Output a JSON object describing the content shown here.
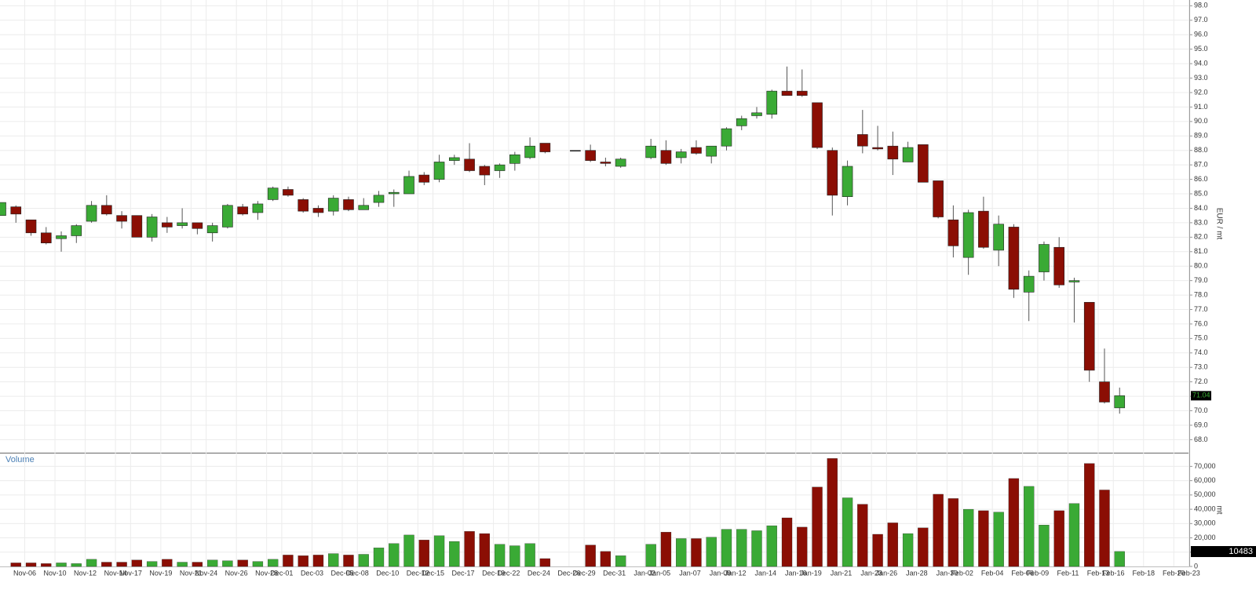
{
  "chart_data": {
    "type": "candlestick",
    "volume_title": "Volume",
    "y_label": "EUR / mt",
    "y2_label": "mt",
    "up_color": "#3aaa35",
    "down_color": "#8b0e04",
    "grid": true,
    "categories": [
      null,
      null,
      "Nov-06",
      null,
      "Nov-10",
      null,
      "Nov-12",
      null,
      "Nov-14",
      "Nov-17",
      null,
      "Nov-19",
      null,
      "Nov-21",
      "Nov-24",
      null,
      "Nov-26",
      null,
      "Nov-28",
      "Dec-01",
      null,
      "Dec-03",
      null,
      "Dec-05",
      "Dec-08",
      null,
      "Dec-10",
      null,
      "Dec-12",
      "Dec-15",
      null,
      "Dec-17",
      null,
      "Dec-19",
      "Dec-22",
      null,
      "Dec-24",
      null,
      "Dec-26",
      "Dec-29",
      null,
      "Dec-31",
      null,
      "Jan-02",
      "Jan-05",
      null,
      "Jan-07",
      null,
      "Jan-09",
      "Jan-12",
      null,
      "Jan-14",
      null,
      "Jan-16",
      "Jan-19",
      null,
      "Jan-21",
      null,
      "Jan-23",
      "Jan-26",
      null,
      "Jan-28",
      null,
      "Jan-30",
      "Feb-02",
      null,
      "Feb-04",
      null,
      "Feb-06",
      "Feb-09",
      null,
      "Feb-11",
      null,
      "Feb-13",
      "Feb-16",
      null,
      "Feb-18",
      null,
      "Feb-20",
      "Feb-23"
    ],
    "open": [
      83.5,
      84.1,
      83.2,
      82.3,
      81.9,
      82.1,
      83.1,
      84.2,
      83.5,
      83.5,
      82.0,
      83.0,
      82.8,
      83.0,
      82.3,
      82.7,
      84.1,
      83.7,
      84.6,
      85.3,
      84.6,
      84.0,
      83.8,
      84.6,
      83.9,
      84.4,
      85.0,
      85.0,
      86.3,
      86.0,
      87.3,
      87.4,
      86.9,
      86.6,
      87.1,
      87.5,
      88.5,
      null,
      88.0,
      88.0,
      87.2,
      86.9,
      null,
      87.5,
      88.0,
      87.5,
      88.2,
      87.6,
      88.3,
      89.7,
      90.4,
      90.5,
      92.1,
      92.1,
      91.3,
      88.0,
      84.8,
      89.1,
      88.2,
      88.3,
      87.2,
      88.4,
      85.9,
      83.2,
      80.6,
      83.8,
      81.1,
      82.7,
      78.2,
      79.6,
      81.3,
      78.9,
      77.5,
      72.0,
      70.2,
      null,
      null,
      null,
      null,
      null
    ],
    "high": [
      84.4,
      84.2,
      83.2,
      82.7,
      82.4,
      82.9,
      84.5,
      84.9,
      83.8,
      83.5,
      83.6,
      83.4,
      84.0,
      83.0,
      83.0,
      84.3,
      84.3,
      84.5,
      85.5,
      85.5,
      84.7,
      84.2,
      84.9,
      84.8,
      84.7,
      85.2,
      85.3,
      86.6,
      86.5,
      87.7,
      87.7,
      88.5,
      87.0,
      87.1,
      87.9,
      88.9,
      88.5,
      null,
      88.0,
      88.4,
      87.5,
      87.5,
      null,
      88.8,
      88.7,
      88.1,
      88.7,
      88.3,
      89.6,
      90.4,
      91.0,
      92.2,
      93.8,
      93.6,
      91.3,
      88.2,
      87.3,
      90.8,
      89.7,
      89.3,
      88.6,
      88.4,
      85.9,
      84.2,
      83.9,
      84.8,
      83.5,
      82.9,
      79.7,
      81.7,
      82.0,
      79.2,
      77.5,
      74.3,
      71.6,
      null,
      null,
      null,
      null,
      null
    ],
    "low": [
      83.5,
      83.0,
      82.1,
      81.5,
      81.0,
      81.6,
      83.0,
      83.5,
      82.6,
      82.0,
      81.7,
      82.3,
      82.6,
      82.2,
      81.7,
      82.6,
      83.5,
      83.2,
      84.5,
      84.8,
      83.7,
      83.4,
      83.5,
      83.8,
      83.9,
      84.1,
      84.1,
      85.0,
      85.6,
      85.8,
      87.0,
      86.5,
      85.6,
      86.1,
      86.6,
      87.4,
      87.8,
      null,
      88.0,
      87.2,
      86.9,
      86.8,
      null,
      87.4,
      87.0,
      87.1,
      87.7,
      87.1,
      88.0,
      89.4,
      90.2,
      90.2,
      91.8,
      91.7,
      88.1,
      83.5,
      84.2,
      87.8,
      88.0,
      86.3,
      87.2,
      85.8,
      83.3,
      80.6,
      79.4,
      81.2,
      80.0,
      77.8,
      76.2,
      79.0,
      78.5,
      76.1,
      72.0,
      70.5,
      69.8,
      null,
      null,
      null,
      null,
      null
    ],
    "close": [
      84.4,
      83.6,
      82.3,
      81.6,
      82.1,
      82.8,
      84.2,
      83.6,
      83.1,
      82.0,
      83.4,
      82.7,
      83.0,
      82.6,
      82.8,
      84.2,
      83.6,
      84.3,
      85.4,
      84.9,
      83.8,
      83.7,
      84.7,
      83.9,
      84.2,
      84.9,
      85.1,
      86.2,
      85.8,
      87.2,
      87.5,
      86.6,
      86.3,
      87.0,
      87.7,
      88.3,
      87.9,
      null,
      88.0,
      87.3,
      87.1,
      87.4,
      null,
      88.3,
      87.1,
      87.9,
      87.8,
      88.3,
      89.5,
      90.2,
      90.6,
      92.1,
      91.8,
      91.8,
      88.2,
      84.9,
      86.9,
      88.3,
      88.1,
      87.4,
      88.2,
      85.8,
      83.4,
      81.4,
      83.7,
      81.3,
      82.9,
      78.4,
      79.3,
      81.5,
      78.7,
      79.0,
      72.8,
      70.6,
      71.04,
      null,
      null,
      null,
      null,
      null
    ],
    "volume": [
      null,
      2500,
      2500,
      2000,
      2500,
      2000,
      5000,
      3000,
      3000,
      4500,
      3500,
      5000,
      3000,
      3000,
      4500,
      4000,
      4500,
      3500,
      5000,
      8000,
      7500,
      8000,
      9000,
      8000,
      8500,
      13000,
      16000,
      22000,
      18500,
      21500,
      17500,
      24500,
      23000,
      15500,
      14500,
      16000,
      5500,
      null,
      null,
      15000,
      10500,
      7500,
      null,
      15500,
      24000,
      19500,
      19500,
      20500,
      26000,
      26000,
      25000,
      28500,
      34000,
      27500,
      55500,
      75500,
      48000,
      43500,
      22500,
      30500,
      23000,
      27000,
      50500,
      47500,
      40000,
      39000,
      38000,
      61500,
      56000,
      29000,
      39000,
      44000,
      72000,
      53500,
      10483,
      null,
      null,
      null,
      null,
      null
    ],
    "ylim": [
      67.1,
      98.4
    ],
    "yticks": [
      {
        "value": 68,
        "label": "68.0"
      },
      {
        "value": 69,
        "label": "69.0"
      },
      {
        "value": 70,
        "label": "70.0"
      },
      {
        "value": 71,
        "label": "71.0"
      },
      {
        "value": 72,
        "label": "72.0"
      },
      {
        "value": 73,
        "label": "73.0"
      },
      {
        "value": 74,
        "label": "74.0"
      },
      {
        "value": 75,
        "label": "75.0"
      },
      {
        "value": 76,
        "label": "76.0"
      },
      {
        "value": 77,
        "label": "77.0"
      },
      {
        "value": 78,
        "label": "78.0"
      },
      {
        "value": 79,
        "label": "79.0"
      },
      {
        "value": 80,
        "label": "80.0"
      },
      {
        "value": 81,
        "label": "81.0"
      },
      {
        "value": 82,
        "label": "82.0"
      },
      {
        "value": 83,
        "label": "83.0"
      },
      {
        "value": 84,
        "label": "84.0"
      },
      {
        "value": 85,
        "label": "85.0"
      },
      {
        "value": 86,
        "label": "86.0"
      },
      {
        "value": 87,
        "label": "87.0"
      },
      {
        "value": 88,
        "label": "88.0"
      },
      {
        "value": 89,
        "label": "89.0"
      },
      {
        "value": 90,
        "label": "90.0"
      },
      {
        "value": 91,
        "label": "91.0"
      },
      {
        "value": 92,
        "label": "92.0"
      },
      {
        "value": 93,
        "label": "93.0"
      },
      {
        "value": 94,
        "label": "94.0"
      },
      {
        "value": 95,
        "label": "95.0"
      },
      {
        "value": 96,
        "label": "96.0"
      },
      {
        "value": 97,
        "label": "97.0"
      },
      {
        "value": 98,
        "label": "98.0"
      }
    ],
    "y2lim": [
      0,
      79000
    ],
    "y2ticks": [
      0,
      {
        "value": 10000,
        "label": "10,000"
      },
      {
        "value": 20000,
        "label": "20,000"
      },
      {
        "value": 30000,
        "label": "30,000"
      },
      {
        "value": 40000,
        "label": "40,000"
      },
      {
        "value": 50000,
        "label": "50,000"
      },
      {
        "value": 60000,
        "label": "60,000"
      },
      {
        "value": 70000,
        "label": "70,000"
      }
    ]
  }
}
